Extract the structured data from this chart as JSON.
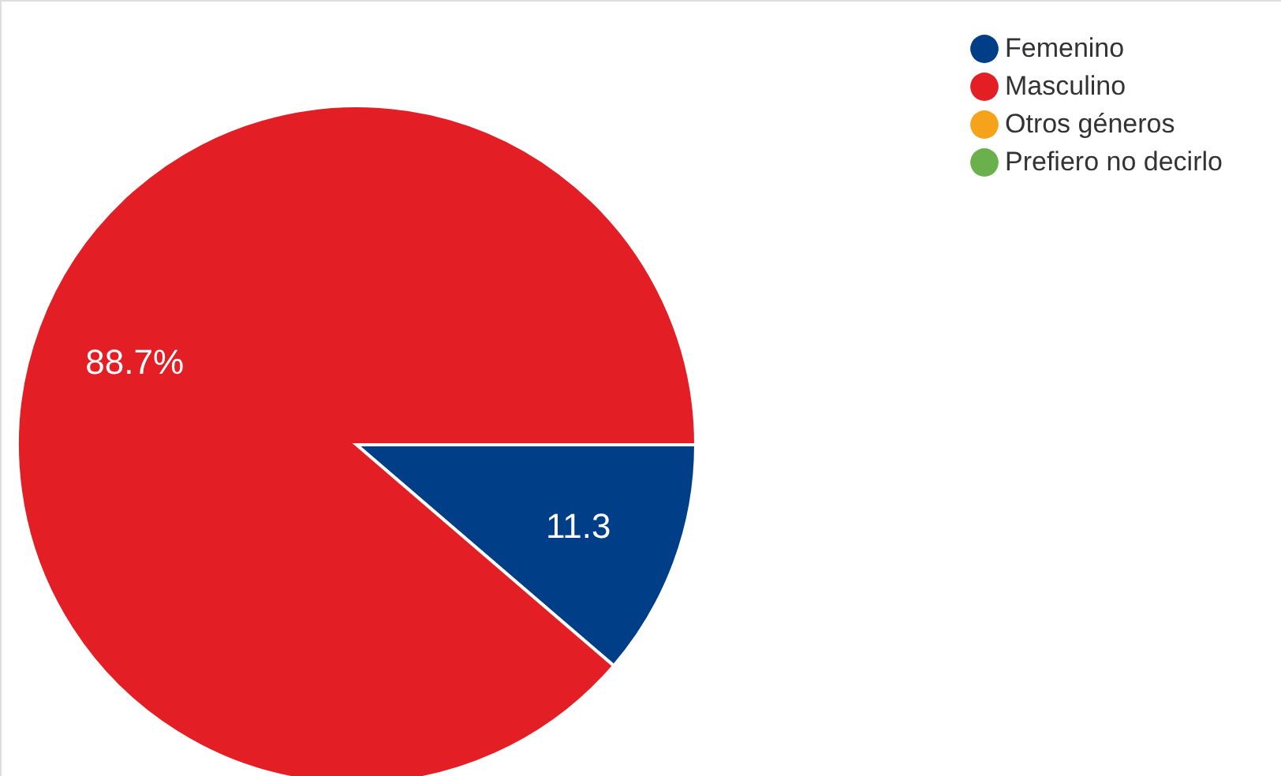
{
  "chart_data": {
    "type": "pie",
    "categories": [
      "Femenino",
      "Masculino",
      "Otros géneros",
      "Prefiero no decirlo"
    ],
    "values": [
      11.3,
      88.7,
      0,
      0
    ],
    "colors": [
      "#003f87",
      "#e31e24",
      "#f5a31a",
      "#6ab04c"
    ],
    "value_labels": [
      "11.3",
      "88.7%",
      null,
      null
    ],
    "legend": "top right"
  }
}
